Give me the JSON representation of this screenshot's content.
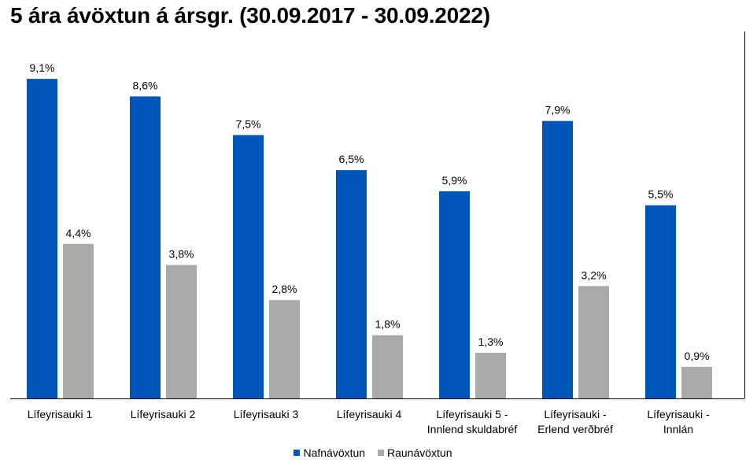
{
  "chart_data": {
    "type": "bar",
    "title": "5 ára ávöxtun á ársgr. (30.09.2017 - 30.09.2022)",
    "categories": [
      [
        "Lífeyrisauki 1"
      ],
      [
        "Lífeyrisauki 2"
      ],
      [
        "Lífeyrisauki 3"
      ],
      [
        "Lífeyrisauki 4"
      ],
      [
        "Lífeyrisauki 5 -",
        "Innlend skuldabréf"
      ],
      [
        "Lífeyrisauki  -",
        "Erlend verðbréf"
      ],
      [
        "Lífeyrisauki -",
        "Innlán"
      ]
    ],
    "series": [
      {
        "name": "Nafnávöxtun",
        "color": "#0055b8",
        "values": [
          9.1,
          8.6,
          7.5,
          6.5,
          5.9,
          7.9,
          5.5
        ],
        "labels": [
          "9,1%",
          "8,6%",
          "7,5%",
          "6,5%",
          "5,9%",
          "7,9%",
          "5,5%"
        ]
      },
      {
        "name": "Raunávöxtun",
        "color": "#a9aba8",
        "values": [
          4.4,
          3.8,
          2.8,
          1.8,
          1.3,
          3.2,
          0.9
        ],
        "labels": [
          "4,4%",
          "3,8%",
          "2,8%",
          "1,8%",
          "1,3%",
          "3,2%",
          "0,9%"
        ]
      }
    ],
    "ylim": [
      0,
      10
    ],
    "grid": false,
    "legend_position": "bottom"
  }
}
